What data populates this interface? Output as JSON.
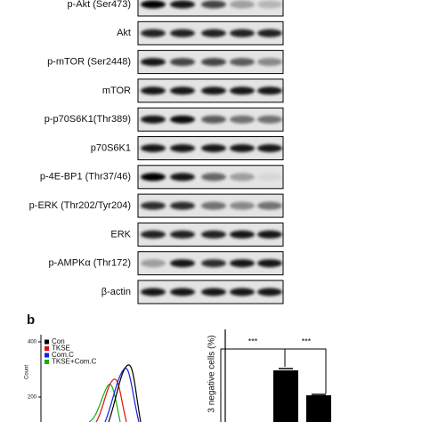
{
  "panel_a": {
    "rows": [
      "p-Akt (Ser473)",
      "Akt",
      "p-mTOR (Ser2448)",
      "mTOR",
      "p-p70S6K1(Thr389)",
      "p70S6K1",
      "p-4E-BP1 (Thr37/46)",
      "p-ERK (Thr202/Tyr204)",
      "ERK",
      "p-AMPKα (Thr172)",
      "β-actin"
    ]
  },
  "panel_b": {
    "label": "b",
    "histogram": {
      "y_label": "Count",
      "tick_labels": [
        "400",
        "200"
      ],
      "legend": [
        {
          "label": "Con",
          "color": "#000000"
        },
        {
          "label": "TKSE",
          "color": "#e01010"
        },
        {
          "label": "Com.C",
          "color": "#1020e0"
        },
        {
          "label": "TKSE+Com.C",
          "color": "#10b010"
        }
      ]
    },
    "bar_chart": {
      "y_label": "3 negative cells (%)",
      "significance": [
        "***",
        "***"
      ]
    }
  }
}
